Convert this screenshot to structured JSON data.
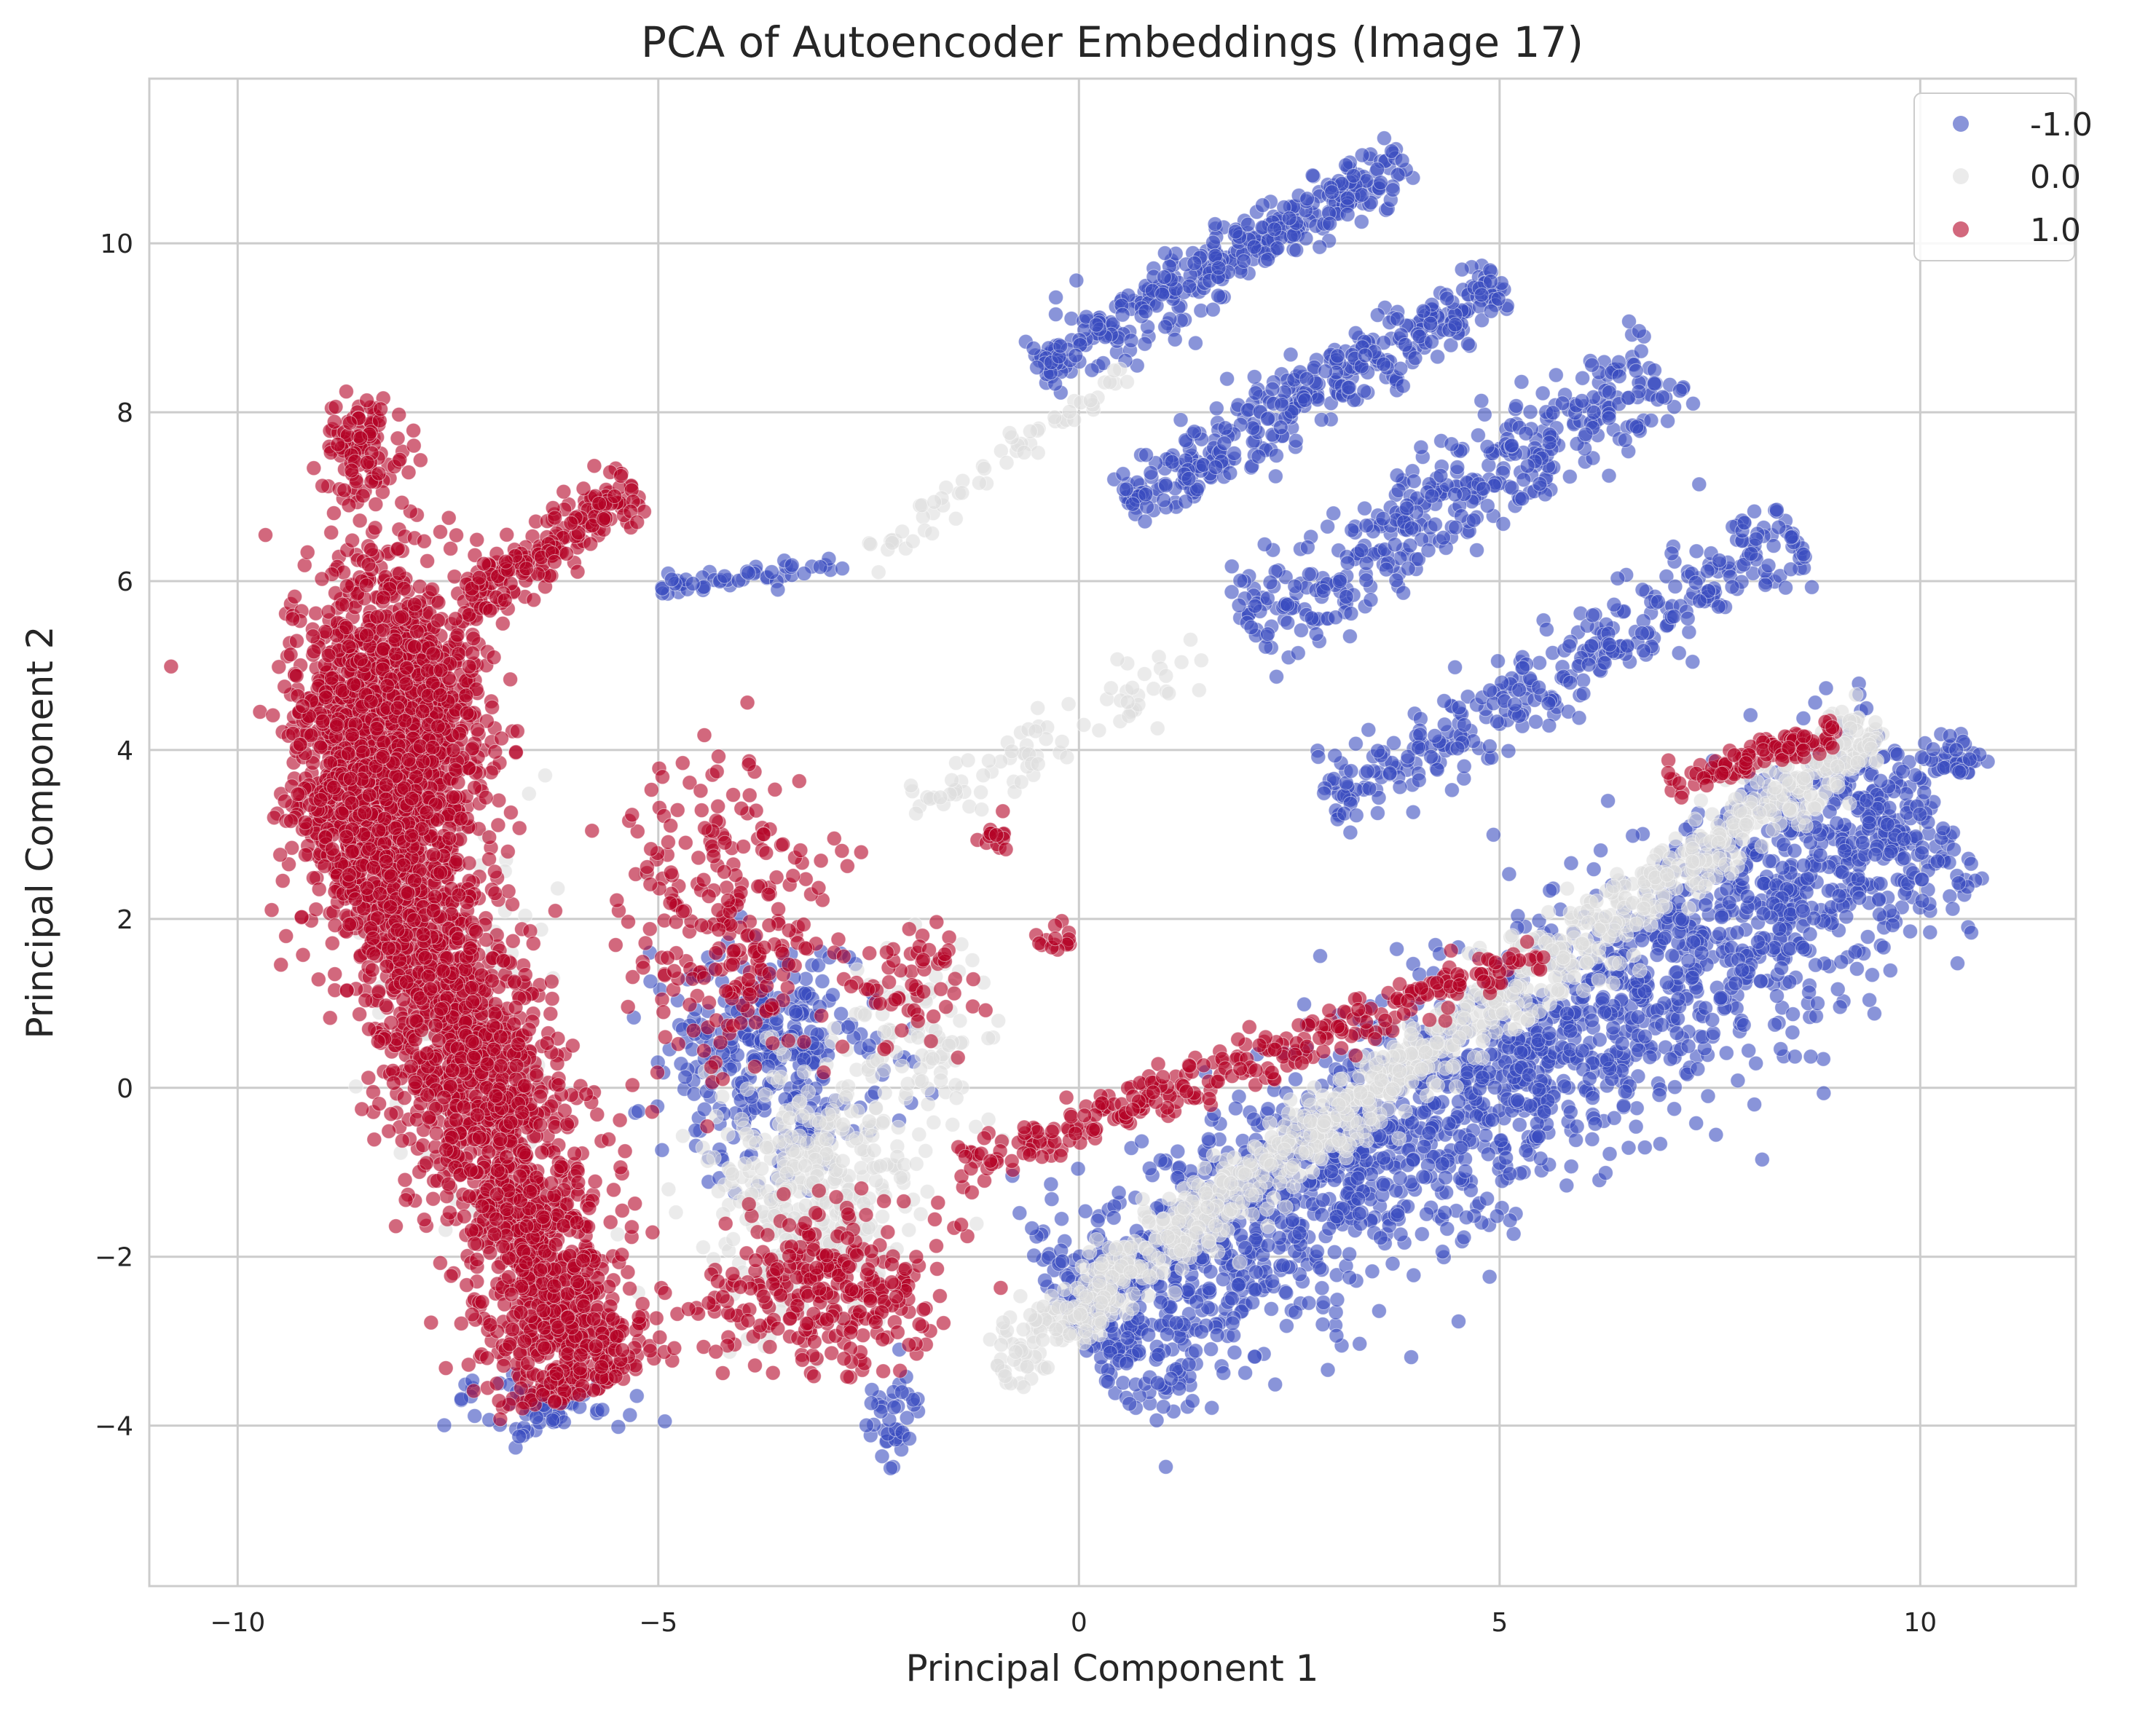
{
  "chart_data": {
    "type": "scatter",
    "title": "PCA of Autoencoder Embeddings (Image 17)",
    "xlabel": "Principal Component 1",
    "ylabel": "Principal Component 2",
    "xlim": [
      -11.05,
      11.85
    ],
    "ylim": [
      -5.9,
      11.95
    ],
    "xticks": [
      -10,
      -5,
      0,
      5,
      10
    ],
    "xtick_labels": [
      "−10",
      "−5",
      "0",
      "5",
      "10"
    ],
    "yticks": [
      -4,
      -2,
      0,
      2,
      4,
      6,
      8,
      10
    ],
    "ytick_labels": [
      "−4",
      "−2",
      "0",
      "2",
      "4",
      "6",
      "8",
      "10"
    ],
    "grid": true,
    "legend_position": "top-right",
    "point_alpha": 0.6,
    "series": [
      {
        "name": "-1.0",
        "color": "#3b4cc0",
        "clusters": [
          {
            "kind": "band",
            "x0": 0.0,
            "y0": -3.0,
            "x1": 10.2,
            "y1": 3.4,
            "width": 2.0,
            "n": 2200
          },
          {
            "kind": "band",
            "x0": -0.5,
            "y0": 8.5,
            "x1": 3.9,
            "y1": 11.0,
            "width": 0.55,
            "n": 380
          },
          {
            "kind": "band",
            "x0": 0.6,
            "y0": 6.9,
            "x1": 5.0,
            "y1": 9.6,
            "width": 0.6,
            "n": 380
          },
          {
            "kind": "band",
            "x0": 2.0,
            "y0": 5.4,
            "x1": 7.0,
            "y1": 8.6,
            "width": 0.8,
            "n": 420
          },
          {
            "kind": "band",
            "x0": 3.0,
            "y0": 3.3,
            "x1": 8.5,
            "y1": 6.6,
            "width": 0.7,
            "n": 360
          },
          {
            "kind": "band",
            "x0": -5.0,
            "y0": 5.9,
            "x1": -2.8,
            "y1": 6.2,
            "width": 0.2,
            "n": 50
          },
          {
            "kind": "blob",
            "cx": -3.6,
            "cy": 0.3,
            "sx": 1.1,
            "sy": 1.1,
            "n": 320
          },
          {
            "kind": "blob",
            "cx": -2.2,
            "cy": -3.9,
            "sx": 0.25,
            "sy": 0.5,
            "n": 40
          },
          {
            "kind": "blob",
            "cx": 10.4,
            "cy": 3.9,
            "sx": 0.3,
            "sy": 0.25,
            "n": 40
          },
          {
            "kind": "blob",
            "cx": -6.5,
            "cy": -3.8,
            "sx": 0.9,
            "sy": 0.3,
            "n": 60
          }
        ]
      },
      {
        "name": "0.0",
        "color": "#dddddd",
        "clusters": [
          {
            "kind": "band",
            "x0": -1.0,
            "y0": -3.3,
            "x1": 9.5,
            "y1": 4.3,
            "width": 0.6,
            "n": 1100
          },
          {
            "kind": "blob",
            "cx": -3.2,
            "cy": -1.2,
            "sx": 1.0,
            "sy": 1.2,
            "n": 380
          },
          {
            "kind": "band",
            "x0": -2.5,
            "y0": 6.2,
            "x1": 0.5,
            "y1": 8.5,
            "width": 0.3,
            "n": 60
          },
          {
            "kind": "band",
            "x0": -2.0,
            "y0": 3.2,
            "x1": 1.5,
            "y1": 5.2,
            "width": 0.5,
            "n": 80
          },
          {
            "kind": "blob",
            "cx": -7.2,
            "cy": 1.0,
            "sx": 0.9,
            "sy": 2.0,
            "n": 110
          },
          {
            "kind": "blob",
            "cx": -1.8,
            "cy": 0.5,
            "sx": 0.8,
            "sy": 1.0,
            "n": 90
          }
        ]
      },
      {
        "name": "1.0",
        "color": "#b40426",
        "clusters": [
          {
            "kind": "blob",
            "cx": -8.2,
            "cy": 4.3,
            "sx": 0.9,
            "sy": 1.5,
            "n": 1600
          },
          {
            "kind": "band",
            "x0": -8.6,
            "y0": 3.8,
            "x1": -5.8,
            "y1": -3.6,
            "width": 1.4,
            "n": 2300
          },
          {
            "kind": "band",
            "x0": -7.2,
            "y0": 5.8,
            "x1": -5.3,
            "y1": 7.1,
            "width": 0.5,
            "n": 200
          },
          {
            "kind": "blob",
            "cx": -8.5,
            "cy": 7.6,
            "sx": 0.4,
            "sy": 0.5,
            "n": 110
          },
          {
            "kind": "blob",
            "cx": -4.2,
            "cy": 2.0,
            "sx": 1.0,
            "sy": 1.6,
            "n": 260
          },
          {
            "kind": "blob",
            "cx": -3.0,
            "cy": -2.4,
            "sx": 1.1,
            "sy": 0.8,
            "n": 300
          },
          {
            "kind": "band",
            "x0": -1.5,
            "y0": -1.0,
            "x1": 5.5,
            "y1": 1.6,
            "width": 0.4,
            "n": 300
          },
          {
            "kind": "band",
            "x0": 7.0,
            "y0": 3.6,
            "x1": 9.0,
            "y1": 4.2,
            "width": 0.3,
            "n": 110
          },
          {
            "kind": "blob",
            "cx": -2.0,
            "cy": 1.2,
            "sx": 0.5,
            "sy": 0.7,
            "n": 60
          },
          {
            "kind": "blob",
            "cx": -1.0,
            "cy": 3.0,
            "sx": 0.2,
            "sy": 0.2,
            "n": 15
          },
          {
            "kind": "blob",
            "cx": -0.3,
            "cy": 1.8,
            "sx": 0.25,
            "sy": 0.2,
            "n": 15
          }
        ]
      }
    ]
  }
}
